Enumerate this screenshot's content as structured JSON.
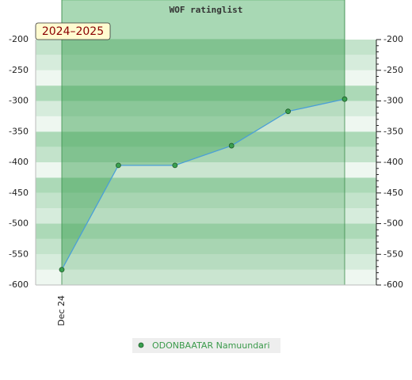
{
  "chart_data": {
    "type": "line",
    "title": "WOF ratinglist",
    "season": "2024–2025",
    "categories": [
      "Dec 24",
      null,
      null,
      null,
      null,
      null
    ],
    "series": [
      {
        "name": "ODONBAATAR Namuundari",
        "color": "#4a9fd8",
        "marker_color": "#3aa050",
        "values": [
          -575,
          -405,
          -405,
          -373,
          -317,
          -297
        ]
      }
    ],
    "ylim": [
      -600,
      -200
    ],
    "yticks": [
      -600,
      -550,
      -500,
      -450,
      -400,
      -350,
      -300,
      -250,
      -200
    ],
    "y2lim": [
      -600,
      -200
    ],
    "y2ticks": [
      -600,
      -550,
      -500,
      -450,
      -400,
      -350,
      -300,
      -250,
      -200
    ]
  }
}
